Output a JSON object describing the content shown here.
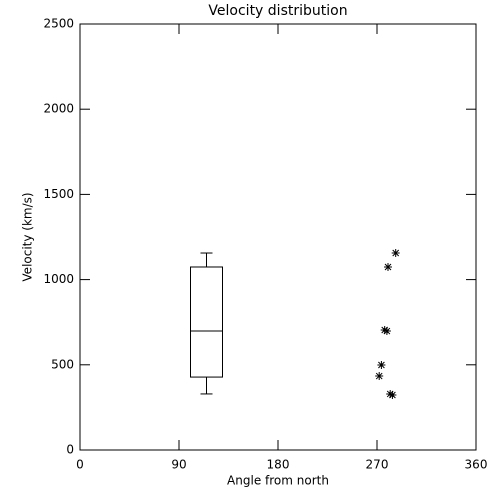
{
  "chart_data": {
    "type": "box",
    "title": "Velocity distribution",
    "x_label": "Angle from north",
    "y_label": "Velocity (km/s)",
    "xlim": [
      0,
      360
    ],
    "xticks": [
      0,
      90,
      180,
      270,
      360
    ],
    "ylim": [
      0,
      2500
    ],
    "yticks": [
      0,
      500,
      1000,
      1500,
      2000,
      2500
    ],
    "color": "#000000",
    "boxes": [
      {
        "x": 115,
        "whislo": 329,
        "q1": 428,
        "med": 698,
        "q3": 1074,
        "whishi": 1156
      }
    ],
    "points": {
      "x": [
        287,
        280,
        277,
        279,
        274,
        272,
        282,
        284
      ],
      "y": [
        1156,
        1074,
        704,
        698,
        499,
        434,
        329,
        323
      ]
    }
  }
}
